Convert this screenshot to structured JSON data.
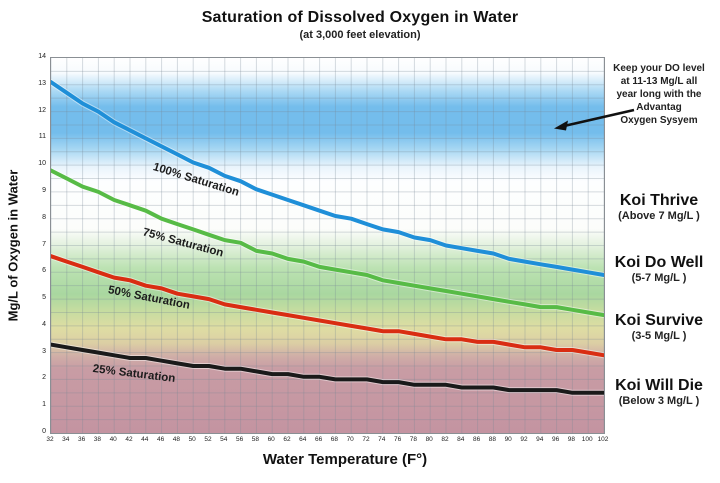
{
  "header": {
    "title": "Saturation of Dissolved Oxygen in Water",
    "subtitle": "(at 3,000 feet elevation)"
  },
  "chart_data": {
    "type": "line",
    "title": "Saturation of Dissolved Oxygen in Water (at 3,000 feet elevation)",
    "xlabel": "Water Temperature (F°)",
    "ylabel": "Mg/L of Oxygen in Water",
    "xlim": [
      32,
      102
    ],
    "ylim": [
      0,
      14
    ],
    "grid": true,
    "x_ticks": [
      32,
      34,
      36,
      38,
      40,
      42,
      44,
      46,
      48,
      50,
      52,
      54,
      56,
      58,
      60,
      62,
      64,
      66,
      68,
      70,
      72,
      74,
      76,
      78,
      80,
      82,
      84,
      86,
      88,
      90,
      92,
      94,
      96,
      98,
      100,
      102
    ],
    "y_ticks": [
      0,
      1,
      2,
      3,
      4,
      5,
      6,
      7,
      8,
      9,
      10,
      11,
      12,
      13,
      14
    ],
    "x": [
      32,
      34,
      36,
      38,
      40,
      42,
      44,
      46,
      48,
      50,
      52,
      54,
      56,
      58,
      60,
      62,
      64,
      66,
      68,
      70,
      72,
      74,
      76,
      78,
      80,
      82,
      84,
      86,
      88,
      90,
      92,
      94,
      96,
      98,
      100,
      102
    ],
    "series": [
      {
        "name": "100% Saturation",
        "color": "#1f8fd8",
        "values": [
          13.1,
          12.7,
          12.3,
          12.0,
          11.6,
          11.3,
          11.0,
          10.7,
          10.4,
          10.1,
          9.9,
          9.6,
          9.4,
          9.1,
          8.9,
          8.7,
          8.5,
          8.3,
          8.1,
          8.0,
          7.8,
          7.6,
          7.5,
          7.3,
          7.2,
          7.0,
          6.9,
          6.8,
          6.7,
          6.5,
          6.4,
          6.3,
          6.2,
          6.1,
          6.0,
          5.9
        ]
      },
      {
        "name": "75% Saturation",
        "color": "#57bb46",
        "values": [
          9.8,
          9.5,
          9.2,
          9.0,
          8.7,
          8.5,
          8.3,
          8.0,
          7.8,
          7.6,
          7.4,
          7.2,
          7.1,
          6.8,
          6.7,
          6.5,
          6.4,
          6.2,
          6.1,
          6.0,
          5.9,
          5.7,
          5.6,
          5.5,
          5.4,
          5.3,
          5.2,
          5.1,
          5.0,
          4.9,
          4.8,
          4.7,
          4.7,
          4.6,
          4.5,
          4.4
        ]
      },
      {
        "name": "50% Saturation",
        "color": "#d92d12",
        "values": [
          6.6,
          6.4,
          6.2,
          6.0,
          5.8,
          5.7,
          5.5,
          5.4,
          5.2,
          5.1,
          5.0,
          4.8,
          4.7,
          4.6,
          4.5,
          4.4,
          4.3,
          4.2,
          4.1,
          4.0,
          3.9,
          3.8,
          3.8,
          3.7,
          3.6,
          3.5,
          3.5,
          3.4,
          3.4,
          3.3,
          3.2,
          3.2,
          3.1,
          3.1,
          3.0,
          2.9
        ]
      },
      {
        "name": "25% Saturation",
        "color": "#1a1a1a",
        "values": [
          3.3,
          3.2,
          3.1,
          3.0,
          2.9,
          2.8,
          2.8,
          2.7,
          2.6,
          2.5,
          2.5,
          2.4,
          2.4,
          2.3,
          2.2,
          2.2,
          2.1,
          2.1,
          2.0,
          2.0,
          2.0,
          1.9,
          1.9,
          1.8,
          1.8,
          1.8,
          1.7,
          1.7,
          1.7,
          1.6,
          1.6,
          1.6,
          1.6,
          1.5,
          1.5,
          1.5
        ]
      }
    ],
    "background_bands": [
      {
        "label": "DO target band 11-13 Mg/L",
        "color": "#74bdec"
      },
      {
        "label": "Koi Do Well band 5-7 Mg/L",
        "color": "#a9d7a0"
      },
      {
        "label": "Koi Survive band 3-5 Mg/L",
        "color": "#dedda3"
      },
      {
        "label": "Koi Will Die band below 3 Mg/L",
        "color": "#c494a1"
      }
    ],
    "legend_position": "labels-on-curves"
  },
  "annotation": {
    "lines": [
      "Keep your DO level",
      "at 11-13 Mg/L all",
      "year long with the",
      "Advantag",
      "Oxygen Sysyem"
    ]
  },
  "zones": [
    {
      "title": "Koi Thrive",
      "subtitle": "(Above 7 Mg/L )"
    },
    {
      "title": "Koi Do Well",
      "subtitle": "(5-7 Mg/L )"
    },
    {
      "title": "Koi Survive",
      "subtitle": "(3-5 Mg/L )"
    },
    {
      "title": "Koi Will Die",
      "subtitle": "(Below 3 Mg/L )"
    }
  ]
}
